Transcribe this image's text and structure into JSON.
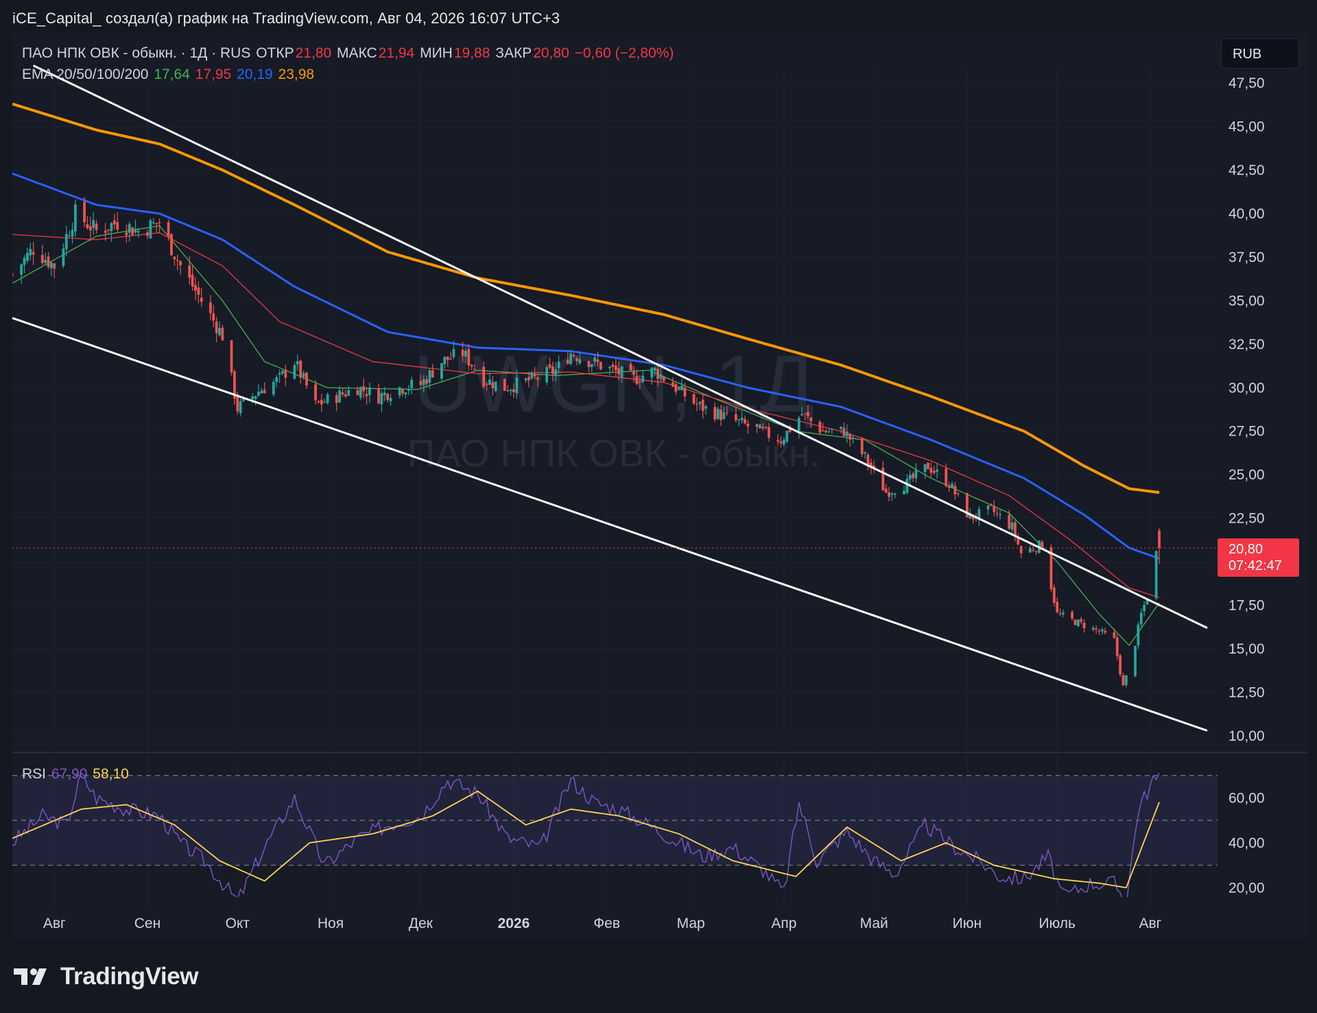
{
  "header": {
    "attribution": "iCE_Capital_ создал(а) график на TradingView.com, Авг 04, 2026 16:07 UTC+3"
  },
  "legend": {
    "instrument": "ПАО НПК ОВК - обыкн. · 1Д · RUS",
    "open_label": "ОТКР",
    "open_value": "21,80",
    "high_label": "МАКС",
    "high_value": "21,94",
    "low_label": "МИН",
    "low_value": "19,88",
    "close_label": "ЗАКР",
    "close_value": "20,80",
    "change": "−0,60 (−2,80%)",
    "ema_label": "EMA 20/50/100/200",
    "ema20": "17,64",
    "ema50": "17,95",
    "ema100": "20,19",
    "ema200": "23,98",
    "rsi_label": "RSI",
    "rsi_value": "67,90",
    "rsi_ma_value": "58,10"
  },
  "currency_button": "RUB",
  "last_price_tag": {
    "price": "20,80",
    "countdown": "07:42:47"
  },
  "watermark": {
    "ticker": "UWGN, 1Д",
    "name": "ПАО НПК ОВК - обыкн."
  },
  "brand": {
    "name": "TradingView"
  },
  "colors": {
    "up": "#26a69a",
    "down": "#ef5350",
    "ema20": "#4caf50",
    "ema50": "#f23645",
    "ema100": "#2962ff",
    "ema200": "#ff9800",
    "rsi": "#7e57c2",
    "rsi_ma": "#ffd54f",
    "trendline": "#ffffff"
  },
  "chart_data": {
    "type": "candlestick",
    "timeframe": "1Д",
    "currency": "RUB",
    "x_range": [
      "2025-07-18",
      "2026-08-04"
    ],
    "ylim": [
      10,
      47.5
    ],
    "y_ticks": [
      "47,50",
      "45,00",
      "42,50",
      "40,00",
      "37,50",
      "35,00",
      "32,50",
      "30,00",
      "27,50",
      "25,00",
      "22,50",
      "20,00",
      "17,50",
      "15,00",
      "12,50",
      "10,00"
    ],
    "y_tick_values": [
      47.5,
      45,
      42.5,
      40,
      37.5,
      35,
      32.5,
      30,
      27.5,
      25,
      22.5,
      20,
      17.5,
      15,
      12.5,
      10
    ],
    "x_ticks": [
      {
        "label": "Авг",
        "date": "2025-08-01"
      },
      {
        "label": "Сен",
        "date": "2025-09-01"
      },
      {
        "label": "Окт",
        "date": "2025-10-01"
      },
      {
        "label": "Ноя",
        "date": "2025-11-01"
      },
      {
        "label": "Дек",
        "date": "2025-12-01"
      },
      {
        "label": "2026",
        "date": "2026-01-01",
        "bold": true
      },
      {
        "label": "Фев",
        "date": "2026-02-01"
      },
      {
        "label": "Мар",
        "date": "2026-03-01"
      },
      {
        "label": "Апр",
        "date": "2026-04-01"
      },
      {
        "label": "Май",
        "date": "2026-05-01"
      },
      {
        "label": "Июн",
        "date": "2026-06-01"
      },
      {
        "label": "Июль",
        "date": "2026-07-01"
      },
      {
        "label": "Авг",
        "date": "2026-08-01"
      }
    ],
    "close_anchors": [
      [
        "2025-07-18",
        36.5
      ],
      [
        "2025-07-25",
        38.0
      ],
      [
        "2025-08-01",
        37.0
      ],
      [
        "2025-08-08",
        40.0
      ],
      [
        "2025-08-15",
        39.0
      ],
      [
        "2025-08-22",
        39.5
      ],
      [
        "2025-08-29",
        39.0
      ],
      [
        "2025-09-05",
        39.5
      ],
      [
        "2025-09-12",
        37.0
      ],
      [
        "2025-09-19",
        35.0
      ],
      [
        "2025-09-26",
        33.0
      ],
      [
        "2025-10-01",
        28.8
      ],
      [
        "2025-10-08",
        29.8
      ],
      [
        "2025-10-15",
        30.5
      ],
      [
        "2025-10-20",
        31.5
      ],
      [
        "2025-10-27",
        29.0
      ],
      [
        "2025-11-03",
        29.5
      ],
      [
        "2025-11-10",
        30.0
      ],
      [
        "2025-11-17",
        29.5
      ],
      [
        "2025-11-24",
        30.0
      ],
      [
        "2025-12-01",
        30.2
      ],
      [
        "2025-12-08",
        31.5
      ],
      [
        "2025-12-15",
        32.0
      ],
      [
        "2025-12-22",
        30.5
      ],
      [
        "2025-12-29",
        30.0
      ],
      [
        "2026-01-08",
        30.5
      ],
      [
        "2026-01-15",
        31.0
      ],
      [
        "2026-01-20",
        32.0
      ],
      [
        "2026-01-27",
        31.5
      ],
      [
        "2026-02-03",
        31.0
      ],
      [
        "2026-02-10",
        30.5
      ],
      [
        "2026-02-17",
        31.0
      ],
      [
        "2026-02-24",
        30.0
      ],
      [
        "2026-03-03",
        29.0
      ],
      [
        "2026-03-10",
        28.5
      ],
      [
        "2026-03-17",
        28.0
      ],
      [
        "2026-03-24",
        27.5
      ],
      [
        "2026-03-31",
        27.0
      ],
      [
        "2026-04-07",
        28.5
      ],
      [
        "2026-04-14",
        27.5
      ],
      [
        "2026-04-21",
        27.5
      ],
      [
        "2026-04-28",
        26.0
      ],
      [
        "2026-05-05",
        24.0
      ],
      [
        "2026-05-12",
        24.5
      ],
      [
        "2026-05-19",
        25.5
      ],
      [
        "2026-05-26",
        24.5
      ],
      [
        "2026-06-02",
        22.5
      ],
      [
        "2026-06-09",
        23.0
      ],
      [
        "2026-06-16",
        22.0
      ],
      [
        "2026-06-19",
        20.5
      ],
      [
        "2026-06-26",
        21.0
      ],
      [
        "2026-07-01",
        17.0
      ],
      [
        "2026-07-08",
        16.5
      ],
      [
        "2026-07-15",
        16.0
      ],
      [
        "2026-07-20",
        15.5
      ],
      [
        "2026-07-23",
        12.8
      ],
      [
        "2026-07-26",
        14.5
      ],
      [
        "2026-07-29",
        17.0
      ],
      [
        "2026-08-01",
        18.5
      ],
      [
        "2026-08-03",
        20.5
      ],
      [
        "2026-08-04",
        20.8
      ]
    ],
    "last_candle": {
      "date": "2026-08-04",
      "open": 21.8,
      "high": 21.94,
      "low": 19.88,
      "close": 20.8
    },
    "ema_series": [
      {
        "name": "EMA 20",
        "last": 17.64,
        "points": [
          [
            "2025-07-18",
            36.0
          ],
          [
            "2025-08-15",
            38.7
          ],
          [
            "2025-09-05",
            39.3
          ],
          [
            "2025-09-26",
            35.0
          ],
          [
            "2025-10-10",
            31.5
          ],
          [
            "2025-10-31",
            30.0
          ],
          [
            "2025-11-30",
            29.9
          ],
          [
            "2025-12-20",
            31.0
          ],
          [
            "2026-01-15",
            30.7
          ],
          [
            "2026-02-15",
            31.0
          ],
          [
            "2026-03-10",
            29.3
          ],
          [
            "2026-04-05",
            27.5
          ],
          [
            "2026-04-28",
            27.0
          ],
          [
            "2026-05-20",
            24.8
          ],
          [
            "2026-06-15",
            22.8
          ],
          [
            "2026-07-01",
            20.0
          ],
          [
            "2026-07-15",
            17.0
          ],
          [
            "2026-07-25",
            15.2
          ],
          [
            "2026-08-04",
            17.64
          ]
        ]
      },
      {
        "name": "EMA 50",
        "last": 17.95,
        "points": [
          [
            "2025-07-18",
            38.8
          ],
          [
            "2025-08-15",
            38.5
          ],
          [
            "2025-09-05",
            38.9
          ],
          [
            "2025-09-26",
            37.0
          ],
          [
            "2025-10-15",
            33.8
          ],
          [
            "2025-11-15",
            31.5
          ],
          [
            "2025-12-20",
            30.8
          ],
          [
            "2026-01-20",
            30.9
          ],
          [
            "2026-02-20",
            30.3
          ],
          [
            "2026-03-20",
            28.8
          ],
          [
            "2026-04-20",
            27.5
          ],
          [
            "2026-05-20",
            25.8
          ],
          [
            "2026-06-15",
            23.8
          ],
          [
            "2026-07-05",
            21.3
          ],
          [
            "2026-07-25",
            18.5
          ],
          [
            "2026-08-04",
            17.95
          ]
        ]
      },
      {
        "name": "EMA 100",
        "last": 20.19,
        "points": [
          [
            "2025-07-18",
            42.3
          ],
          [
            "2025-08-15",
            40.5
          ],
          [
            "2025-09-05",
            40.0
          ],
          [
            "2025-09-26",
            38.5
          ],
          [
            "2025-10-20",
            35.8
          ],
          [
            "2025-11-20",
            33.2
          ],
          [
            "2025-12-20",
            32.3
          ],
          [
            "2026-01-20",
            32.1
          ],
          [
            "2026-02-20",
            31.3
          ],
          [
            "2026-03-20",
            30.0
          ],
          [
            "2026-04-20",
            28.9
          ],
          [
            "2026-05-20",
            27.0
          ],
          [
            "2026-06-20",
            24.8
          ],
          [
            "2026-07-10",
            22.7
          ],
          [
            "2026-07-25",
            20.8
          ],
          [
            "2026-08-04",
            20.19
          ]
        ]
      },
      {
        "name": "EMA 200",
        "last": 23.98,
        "points": [
          [
            "2025-07-18",
            46.3
          ],
          [
            "2025-08-15",
            44.8
          ],
          [
            "2025-09-05",
            44.0
          ],
          [
            "2025-09-26",
            42.5
          ],
          [
            "2025-10-20",
            40.5
          ],
          [
            "2025-11-20",
            37.8
          ],
          [
            "2025-12-20",
            36.3
          ],
          [
            "2026-01-20",
            35.3
          ],
          [
            "2026-02-20",
            34.2
          ],
          [
            "2026-03-20",
            32.8
          ],
          [
            "2026-04-20",
            31.3
          ],
          [
            "2026-05-20",
            29.5
          ],
          [
            "2026-06-20",
            27.5
          ],
          [
            "2026-07-10",
            25.5
          ],
          [
            "2026-07-25",
            24.2
          ],
          [
            "2026-08-04",
            23.98
          ]
        ]
      }
    ],
    "trendlines": [
      {
        "name": "upper",
        "from": [
          "2025-07-25",
          48.5
        ],
        "to": [
          "2026-08-20",
          16.2
        ]
      },
      {
        "name": "lower",
        "from": [
          "2025-07-18",
          34.0
        ],
        "to": [
          "2026-08-20",
          10.3
        ]
      }
    ],
    "rsi_panel": {
      "ylim": [
        10,
        80
      ],
      "y_ticks": [
        "60,00",
        "40,00",
        "20,00"
      ],
      "y_tick_values": [
        60,
        40,
        20
      ],
      "bands": [
        70,
        50,
        30
      ],
      "rsi_anchors": [
        [
          "2025-07-18",
          40
        ],
        [
          "2025-07-28",
          52
        ],
        [
          "2025-08-05",
          48
        ],
        [
          "2025-08-10",
          70
        ],
        [
          "2025-08-15",
          60
        ],
        [
          "2025-08-25",
          55
        ],
        [
          "2025-09-05",
          52
        ],
        [
          "2025-09-12",
          40
        ],
        [
          "2025-09-20",
          32
        ],
        [
          "2025-10-01",
          14
        ],
        [
          "2025-10-10",
          38
        ],
        [
          "2025-10-20",
          60
        ],
        [
          "2025-10-30",
          30
        ],
        [
          "2025-11-10",
          42
        ],
        [
          "2025-11-20",
          48
        ],
        [
          "2025-12-01",
          52
        ],
        [
          "2025-12-10",
          68
        ],
        [
          "2025-12-20",
          62
        ],
        [
          "2025-12-30",
          42
        ],
        [
          "2026-01-10",
          38
        ],
        [
          "2026-01-20",
          68
        ],
        [
          "2026-01-28",
          58
        ],
        [
          "2026-02-05",
          55
        ],
        [
          "2026-02-15",
          48
        ],
        [
          "2026-02-25",
          40
        ],
        [
          "2026-03-05",
          34
        ],
        [
          "2026-03-15",
          38
        ],
        [
          "2026-03-25",
          28
        ],
        [
          "2026-04-01",
          18
        ],
        [
          "2026-04-06",
          58
        ],
        [
          "2026-04-12",
          32
        ],
        [
          "2026-04-22",
          45
        ],
        [
          "2026-05-01",
          32
        ],
        [
          "2026-05-08",
          26
        ],
        [
          "2026-05-18",
          48
        ],
        [
          "2026-05-28",
          38
        ],
        [
          "2026-06-05",
          32
        ],
        [
          "2026-06-12",
          25
        ],
        [
          "2026-06-20",
          24
        ],
        [
          "2026-06-28",
          34
        ],
        [
          "2026-07-03",
          16
        ],
        [
          "2026-07-12",
          22
        ],
        [
          "2026-07-20",
          22
        ],
        [
          "2026-07-24",
          14
        ],
        [
          "2026-07-28",
          55
        ],
        [
          "2026-08-02",
          68
        ],
        [
          "2026-08-04",
          67.9
        ]
      ],
      "rsi_ma_anchors": [
        [
          "2025-07-18",
          42
        ],
        [
          "2025-08-10",
          55
        ],
        [
          "2025-08-25",
          57
        ],
        [
          "2025-09-10",
          48
        ],
        [
          "2025-09-25",
          32
        ],
        [
          "2025-10-10",
          23
        ],
        [
          "2025-10-25",
          40
        ],
        [
          "2025-11-15",
          44
        ],
        [
          "2025-12-05",
          52
        ],
        [
          "2025-12-20",
          63
        ],
        [
          "2026-01-05",
          48
        ],
        [
          "2026-01-20",
          55
        ],
        [
          "2026-02-05",
          52
        ],
        [
          "2026-02-25",
          44
        ],
        [
          "2026-03-15",
          32
        ],
        [
          "2026-04-05",
          25
        ],
        [
          "2026-04-22",
          47
        ],
        [
          "2026-05-10",
          32
        ],
        [
          "2026-05-25",
          40
        ],
        [
          "2026-06-10",
          30
        ],
        [
          "2026-06-30",
          24
        ],
        [
          "2026-07-15",
          22
        ],
        [
          "2026-07-24",
          20
        ],
        [
          "2026-08-04",
          58.1
        ]
      ]
    },
    "current_price": 20.8
  }
}
